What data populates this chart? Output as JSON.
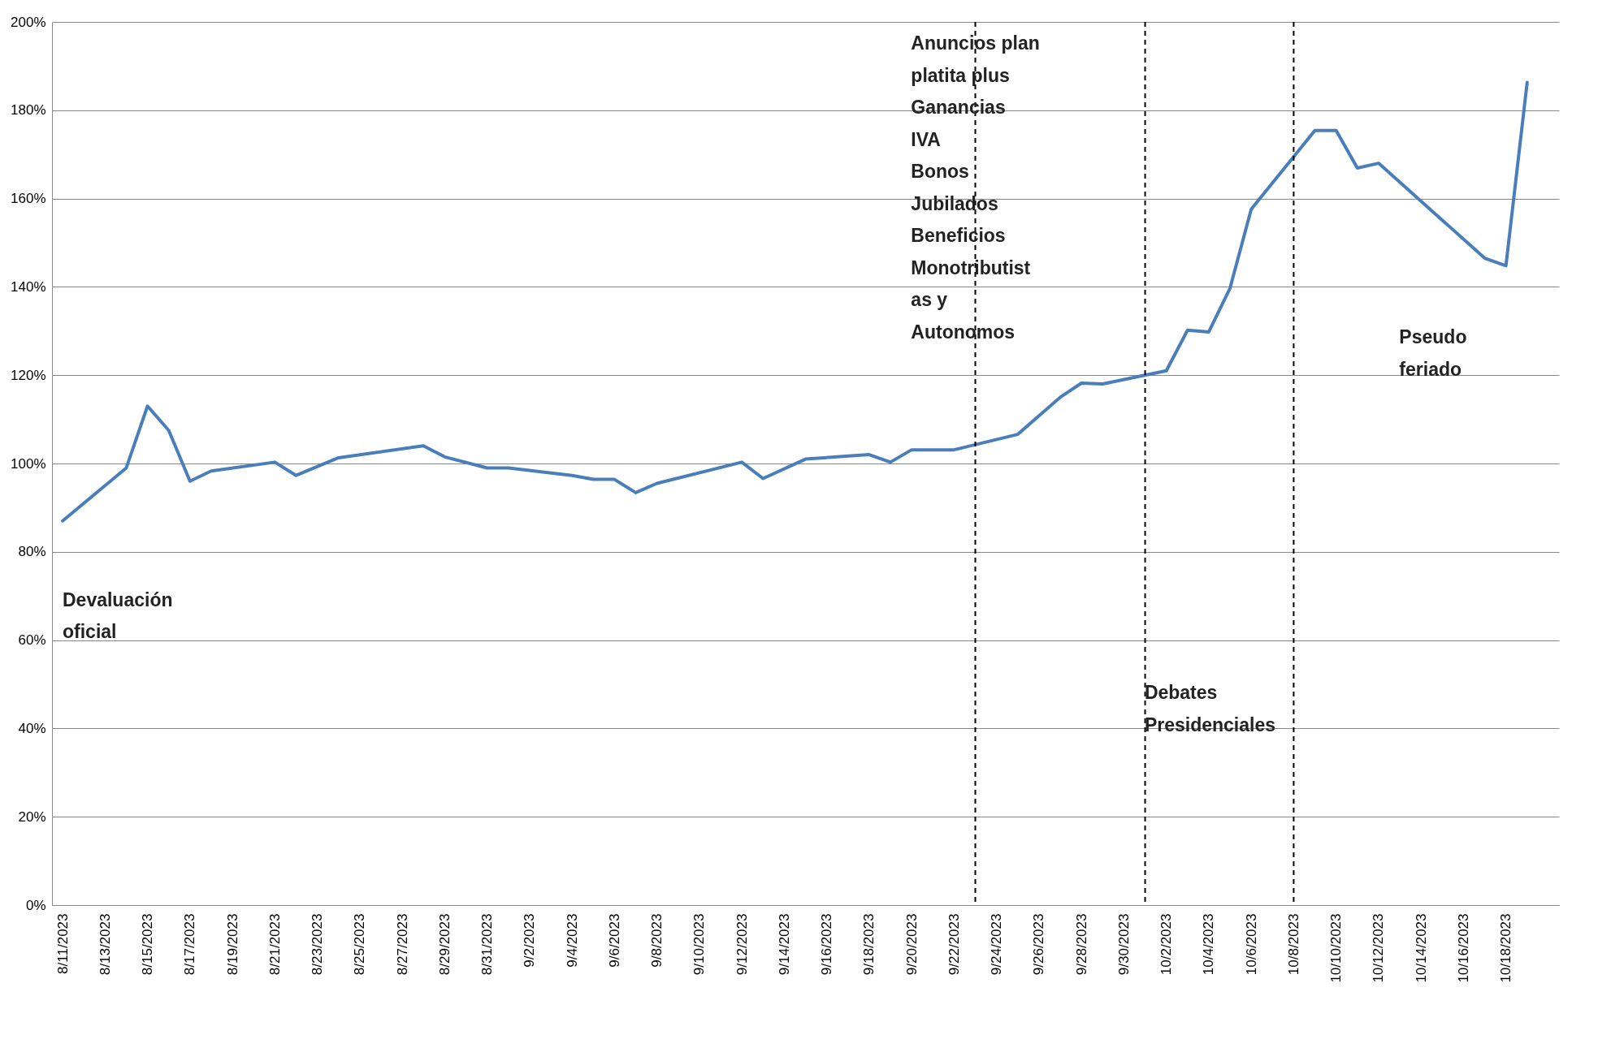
{
  "chart_data": {
    "type": "line",
    "x": [
      "2023-08-11",
      "2023-08-14",
      "2023-08-15",
      "2023-08-16",
      "2023-08-17",
      "2023-08-18",
      "2023-08-21",
      "2023-08-22",
      "2023-08-24",
      "2023-08-28",
      "2023-08-29",
      "2023-08-31",
      "2023-09-01",
      "2023-09-04",
      "2023-09-05",
      "2023-09-06",
      "2023-09-07",
      "2023-09-08",
      "2023-09-12",
      "2023-09-13",
      "2023-09-15",
      "2023-09-18",
      "2023-09-19",
      "2023-09-20",
      "2023-09-22",
      "2023-09-25",
      "2023-09-27",
      "2023-09-28",
      "2023-09-29",
      "2023-10-02",
      "2023-10-03",
      "2023-10-04",
      "2023-10-05",
      "2023-10-06",
      "2023-10-09",
      "2023-10-10",
      "2023-10-11",
      "2023-10-12",
      "2023-10-17",
      "2023-10-18",
      "2023-10-19"
    ],
    "series": [
      {
        "color": "#4a7ebb",
        "values": [
          87,
          99,
          113,
          107.5,
          96,
          98.3,
          100.3,
          97.3,
          101.3,
          104,
          101.5,
          99,
          99,
          97.3,
          96.4,
          96.4,
          93.4,
          95.5,
          100.3,
          96.6,
          101,
          102,
          100.3,
          103.1,
          103.1,
          106.6,
          115,
          118.2,
          118,
          121,
          130.2,
          129.8,
          139.7,
          157.6,
          175.4,
          175.4,
          166.9,
          168,
          146.5,
          144.8,
          186.3
        ]
      }
    ],
    "xlim": [
      "2023-08-10T12:00",
      "2023-10-20T12:00"
    ],
    "xticks": [
      {
        "value": "2023-08-11",
        "label": "8/11/2023"
      },
      {
        "value": "2023-08-13",
        "label": "8/13/2023"
      },
      {
        "value": "2023-08-15",
        "label": "8/15/2023"
      },
      {
        "value": "2023-08-17",
        "label": "8/17/2023"
      },
      {
        "value": "2023-08-19",
        "label": "8/19/2023"
      },
      {
        "value": "2023-08-21",
        "label": "8/21/2023"
      },
      {
        "value": "2023-08-23",
        "label": "8/23/2023"
      },
      {
        "value": "2023-08-25",
        "label": "8/25/2023"
      },
      {
        "value": "2023-08-27",
        "label": "8/27/2023"
      },
      {
        "value": "2023-08-29",
        "label": "8/29/2023"
      },
      {
        "value": "2023-08-31",
        "label": "8/31/2023"
      },
      {
        "value": "2023-09-02",
        "label": "9/2/2023"
      },
      {
        "value": "2023-09-04",
        "label": "9/4/2023"
      },
      {
        "value": "2023-09-06",
        "label": "9/6/2023"
      },
      {
        "value": "2023-09-08",
        "label": "9/8/2023"
      },
      {
        "value": "2023-09-10",
        "label": "9/10/2023"
      },
      {
        "value": "2023-09-12",
        "label": "9/12/2023"
      },
      {
        "value": "2023-09-14",
        "label": "9/14/2023"
      },
      {
        "value": "2023-09-16",
        "label": "9/16/2023"
      },
      {
        "value": "2023-09-18",
        "label": "9/18/2023"
      },
      {
        "value": "2023-09-20",
        "label": "9/20/2023"
      },
      {
        "value": "2023-09-22",
        "label": "9/22/2023"
      },
      {
        "value": "2023-09-24",
        "label": "9/24/2023"
      },
      {
        "value": "2023-09-26",
        "label": "9/26/2023"
      },
      {
        "value": "2023-09-28",
        "label": "9/28/2023"
      },
      {
        "value": "2023-09-30",
        "label": "9/30/2023"
      },
      {
        "value": "2023-10-02",
        "label": "10/2/2023"
      },
      {
        "value": "2023-10-04",
        "label": "10/4/2023"
      },
      {
        "value": "2023-10-06",
        "label": "10/6/2023"
      },
      {
        "value": "2023-10-08",
        "label": "10/8/2023"
      },
      {
        "value": "2023-10-10",
        "label": "10/10/2023"
      },
      {
        "value": "2023-10-12",
        "label": "10/12/2023"
      },
      {
        "value": "2023-10-14",
        "label": "10/14/2023"
      },
      {
        "value": "2023-10-16",
        "label": "10/16/2023"
      },
      {
        "value": "2023-10-18",
        "label": "10/18/2023"
      }
    ],
    "ylim": [
      0,
      200
    ],
    "yticks": [
      {
        "value": 0,
        "label": "0%"
      },
      {
        "value": 20,
        "label": "20%"
      },
      {
        "value": 40,
        "label": "40%"
      },
      {
        "value": 60,
        "label": "60%"
      },
      {
        "value": 80,
        "label": "80%"
      },
      {
        "value": 100,
        "label": "100%"
      },
      {
        "value": 120,
        "label": "120%"
      },
      {
        "value": 140,
        "label": "140%"
      },
      {
        "value": 160,
        "label": "160%"
      },
      {
        "value": 180,
        "label": "180%"
      },
      {
        "value": 200,
        "label": "200%"
      }
    ],
    "grid": "y",
    "line_style": "solid",
    "ref_lines": [
      {
        "axis": "x",
        "value": "2023-09-23",
        "color": "#000000",
        "line_style": "dashed"
      },
      {
        "axis": "x",
        "value": "2023-10-01",
        "color": "#000000",
        "line_style": "dashed"
      },
      {
        "axis": "x",
        "value": "2023-10-08",
        "color": "#000000",
        "line_style": "dashed"
      }
    ],
    "annotations": [
      "Devaluación\noficial",
      "Anuncios plan\nplatita plus\nGanancias\nIVA\nBonos\nJubilados\nBeneficios\nMonotributist\nas y\nAutonomos",
      "Debates\nPresidenciales",
      "Pseudo\nferiado"
    ]
  }
}
